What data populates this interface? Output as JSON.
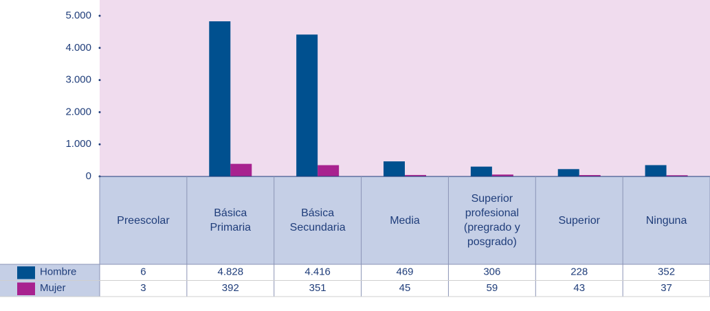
{
  "chart_data": {
    "type": "bar",
    "categories": [
      "Preescolar",
      "Básica Primaria",
      "Básica Secundaria",
      "Media",
      "Superior profesional (pregrado y posgrado)",
      "Superior",
      "Ninguna"
    ],
    "series": [
      {
        "name": "Hombre",
        "color": "#00508f",
        "values": [
          6,
          4828,
          4416,
          469,
          306,
          228,
          352
        ],
        "value_labels": [
          "6",
          "4.828",
          "4.416",
          "469",
          "306",
          "228",
          "352"
        ]
      },
      {
        "name": "Mujer",
        "color": "#a8228f",
        "values": [
          3,
          392,
          351,
          45,
          59,
          43,
          37
        ],
        "value_labels": [
          "3",
          "392",
          "351",
          "45",
          "59",
          "43",
          "37"
        ]
      }
    ],
    "ylim": [
      0,
      5000
    ],
    "yticks": [
      0,
      {
        "value": 1000,
        "label": "1.000"
      },
      {
        "value": 2000,
        "label": "2.000"
      },
      {
        "value": 3000,
        "label": "3.000"
      },
      {
        "value": 4000,
        "label": "4.000"
      },
      {
        "value": 5000,
        "label": "5.000"
      }
    ],
    "grid": false
  }
}
